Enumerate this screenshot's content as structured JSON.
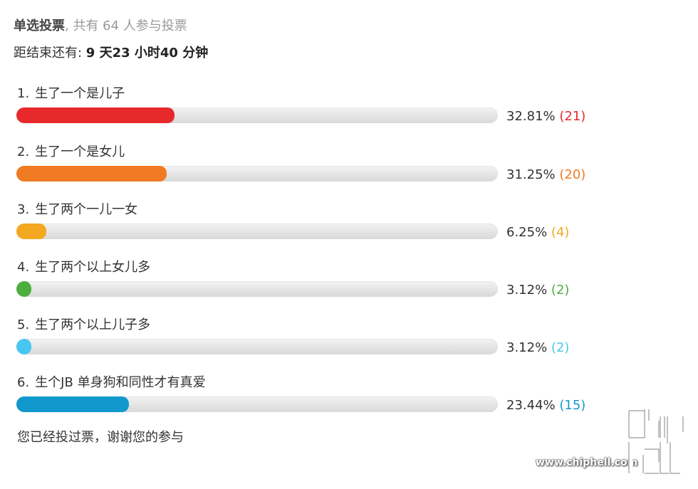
{
  "poll": {
    "type_label": "单选投票",
    "participants_text": ", 共有 64 人参与投票",
    "deadline_label": "距结束还有: ",
    "deadline_value": "9 天23 小时40 分钟",
    "options": [
      {
        "num": "1.",
        "label": "生了一个是儿子",
        "percent": "32.81%",
        "count": "(21)",
        "fraction": 0.3281,
        "color": "#e8292b"
      },
      {
        "num": "2.",
        "label": "生了一个是女儿",
        "percent": "31.25%",
        "count": "(20)",
        "fraction": 0.3125,
        "color": "#f07a22"
      },
      {
        "num": "3.",
        "label": "生了两个一儿一女",
        "percent": "6.25%",
        "count": "(4)",
        "fraction": 0.0625,
        "color": "#f3a81f"
      },
      {
        "num": "4.",
        "label": "生了两个以上女儿多",
        "percent": "3.12%",
        "count": "(2)",
        "fraction": 0.0312,
        "color": "#4cae3f"
      },
      {
        "num": "5.",
        "label": "生了两个以上儿子多",
        "percent": "3.12%",
        "count": "(2)",
        "fraction": 0.0312,
        "color": "#48c6f2"
      },
      {
        "num": "6.",
        "label": "生个JB 单身狗和同性才有真爱",
        "percent": "23.44%",
        "count": "(15)",
        "fraction": 0.2344,
        "color": "#1198cc"
      }
    ],
    "voted_message": "您已经投过票，谢谢您的参与"
  },
  "watermark": {
    "url": "www.chiphell.com",
    "logo_icon": "chiphell-logo-icon"
  }
}
